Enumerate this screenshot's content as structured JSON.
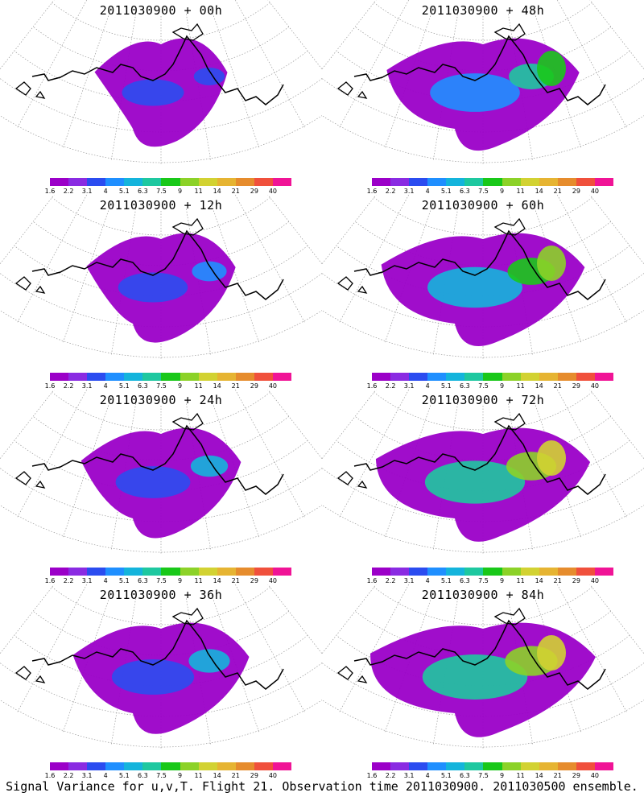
{
  "panels": [
    {
      "title": "2011030900 + 00h",
      "intensity": 0.0
    },
    {
      "title": "2011030900 + 48h",
      "intensity": 0.55
    },
    {
      "title": "2011030900 + 12h",
      "intensity": 0.15
    },
    {
      "title": "2011030900 + 60h",
      "intensity": 0.65
    },
    {
      "title": "2011030900 + 24h",
      "intensity": 0.25
    },
    {
      "title": "2011030900 + 72h",
      "intensity": 0.75
    },
    {
      "title": "2011030900 + 36h",
      "intensity": 0.4
    },
    {
      "title": "2011030900 + 84h",
      "intensity": 0.85
    }
  ],
  "colorbar": {
    "colors": [
      "#9b00c8",
      "#8a2be2",
      "#2b4cf0",
      "#1f8fff",
      "#14b4dc",
      "#1ec8a0",
      "#19c819",
      "#8cd228",
      "#d2d232",
      "#e6b432",
      "#e68c2d",
      "#f0503c",
      "#f01496"
    ],
    "labels": [
      "1.6",
      "2.2",
      "3.1",
      "4",
      "5.1",
      "6.3",
      "7.5",
      "9",
      "11",
      "14",
      "21",
      "29",
      "40"
    ]
  },
  "footer": "Signal Variance for u,v,T. Flight 21. Observation time 2011030900. 2011030500 ensemble."
}
